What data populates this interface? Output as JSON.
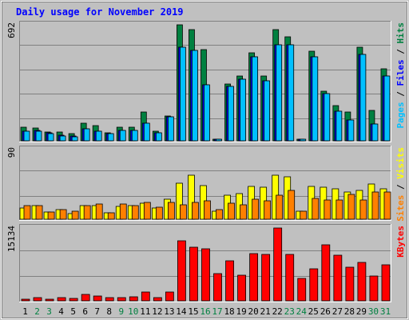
{
  "chart_data": [
    {
      "type": "bar",
      "title": "Daily usage for November 2019",
      "ylabel_parts": [
        {
          "text": "Pages",
          "color": "#00c0ff"
        },
        {
          "text": " / ",
          "color": "#000000"
        },
        {
          "text": "Files",
          "color": "#0000ff"
        },
        {
          "text": " / ",
          "color": "#000000"
        },
        {
          "text": "Hits",
          "color": "#008040"
        }
      ],
      "ymax_label": "692",
      "ylim": [
        0,
        692
      ],
      "categories": [
        "1",
        "2",
        "3",
        "4",
        "5",
        "6",
        "7",
        "8",
        "9",
        "10",
        "11",
        "12",
        "13",
        "14",
        "15",
        "16",
        "17",
        "18",
        "19",
        "20",
        "21",
        "22",
        "23",
        "24",
        "25",
        "26",
        "27",
        "28",
        "29",
        "30",
        "31"
      ],
      "series": [
        {
          "name": "Hits",
          "color": "#008040",
          "values": [
            80,
            75,
            50,
            50,
            40,
            105,
            90,
            45,
            80,
            80,
            170,
            55,
            145,
            680,
            650,
            535,
            10,
            330,
            380,
            515,
            380,
            650,
            610,
            10,
            525,
            290,
            205,
            170,
            545,
            180,
            420
          ]
        },
        {
          "name": "Files",
          "color": "#0000ff",
          "values": [
            55,
            60,
            45,
            35,
            30,
            70,
            55,
            40,
            60,
            60,
            105,
            45,
            140,
            545,
            530,
            325,
            10,
            320,
            360,
            490,
            350,
            560,
            560,
            10,
            490,
            275,
            175,
            120,
            505,
            100,
            380
          ]
        },
        {
          "name": "Pages",
          "color": "#00c0ff",
          "values": [
            55,
            55,
            40,
            30,
            25,
            70,
            55,
            40,
            60,
            60,
            105,
            45,
            140,
            545,
            530,
            325,
            10,
            320,
            360,
            490,
            350,
            560,
            560,
            10,
            490,
            275,
            175,
            120,
            505,
            100,
            380
          ]
        }
      ]
    },
    {
      "type": "bar",
      "ylabel_parts": [
        {
          "text": "Sites",
          "color": "#ff8000"
        },
        {
          "text": " / ",
          "color": "#000000"
        },
        {
          "text": "Visits",
          "color": "#ffff00"
        }
      ],
      "ymax_label": "90",
      "ylim": [
        0,
        90
      ],
      "categories": [
        "1",
        "2",
        "3",
        "4",
        "5",
        "6",
        "7",
        "8",
        "9",
        "10",
        "11",
        "12",
        "13",
        "14",
        "15",
        "16",
        "17",
        "18",
        "19",
        "20",
        "21",
        "22",
        "23",
        "24",
        "25",
        "26",
        "27",
        "28",
        "29",
        "30",
        "31"
      ],
      "series": [
        {
          "name": "Visits",
          "color": "#ffff00",
          "values": [
            14,
            17,
            9,
            12,
            7,
            17,
            17,
            8,
            16,
            17,
            20,
            14,
            25,
            45,
            55,
            42,
            10,
            30,
            32,
            41,
            40,
            55,
            53,
            10,
            41,
            40,
            38,
            34,
            36,
            44,
            38
          ]
        },
        {
          "name": "Sites",
          "color": "#ff8000",
          "values": [
            17,
            17,
            9,
            12,
            10,
            17,
            19,
            8,
            19,
            17,
            21,
            15,
            21,
            18,
            21,
            23,
            12,
            20,
            18,
            25,
            23,
            30,
            36,
            10,
            26,
            24,
            24,
            31,
            24,
            34,
            34
          ]
        }
      ]
    },
    {
      "type": "bar",
      "ylabel_parts": [
        {
          "text": "KBytes",
          "color": "#ff0000"
        }
      ],
      "ymax_label": "15134",
      "ylim": [
        0,
        15134
      ],
      "categories": [
        "1",
        "2",
        "3",
        "4",
        "5",
        "6",
        "7",
        "8",
        "9",
        "10",
        "11",
        "12",
        "13",
        "14",
        "15",
        "16",
        "17",
        "18",
        "19",
        "20",
        "21",
        "22",
        "23",
        "24",
        "25",
        "26",
        "27",
        "28",
        "29",
        "30",
        "31"
      ],
      "series": [
        {
          "name": "KBytes",
          "color": "#ff0000",
          "values": [
            400,
            600,
            400,
            700,
            500,
            1300,
            900,
            700,
            700,
            800,
            1700,
            600,
            1700,
            12100,
            10800,
            10400,
            5500,
            8000,
            5100,
            9500,
            9300,
            14700,
            9300,
            4500,
            6400,
            11300,
            9200,
            6800,
            7800,
            5000,
            7200
          ]
        }
      ]
    }
  ],
  "xlabel_colors": [
    "#000000",
    "#008040",
    "#008040",
    "#000000",
    "#000000",
    "#000000",
    "#000000",
    "#000000",
    "#008040",
    "#008040",
    "#000000",
    "#000000",
    "#000000",
    "#000000",
    "#000000",
    "#008040",
    "#008040",
    "#000000",
    "#000000",
    "#000000",
    "#000000",
    "#000000",
    "#008040",
    "#008040",
    "#000000",
    "#000000",
    "#000000",
    "#000000",
    "#000000",
    "#008040",
    "#008040"
  ],
  "colors": {
    "background": "#c0c0c0",
    "panel": "#c0c0c0",
    "gridline": "#808080",
    "title": "#0000ff"
  }
}
